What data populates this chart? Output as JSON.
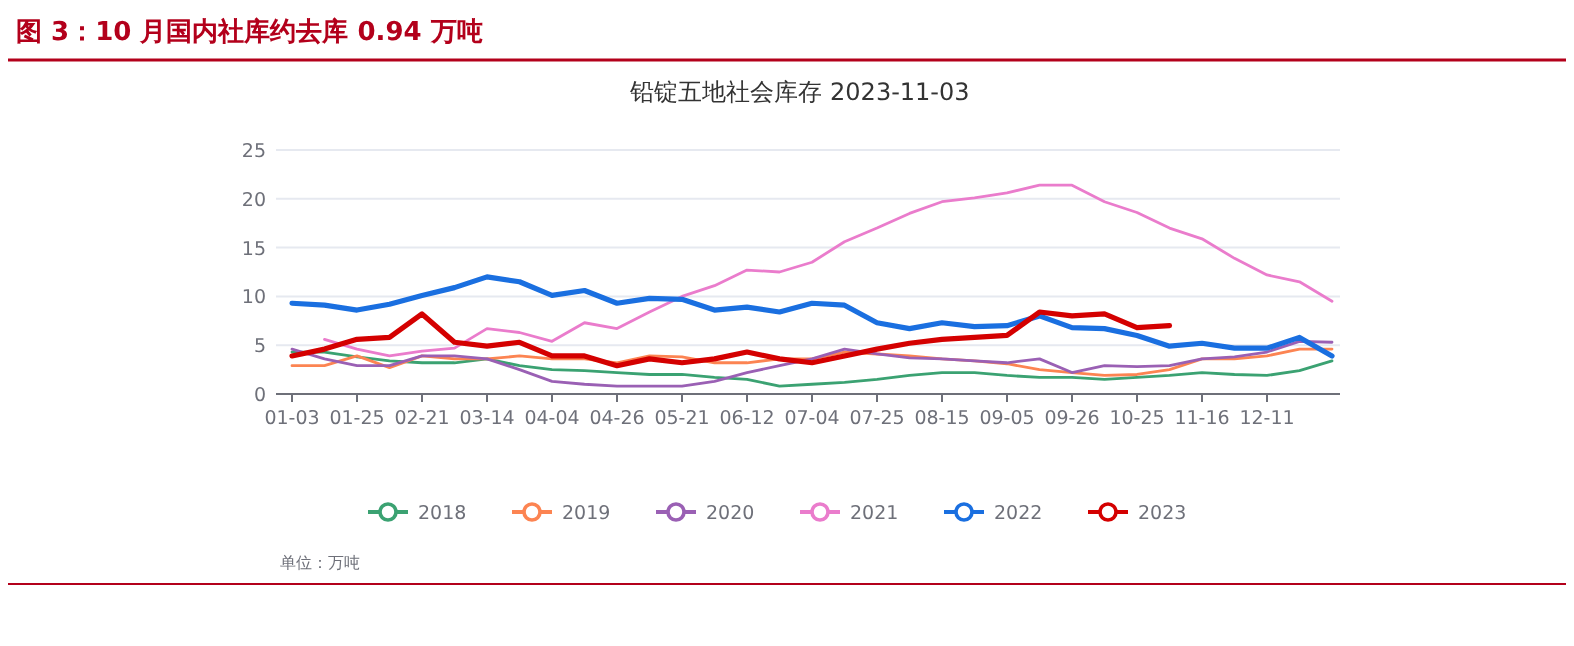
{
  "chart_data": {
    "type": "line",
    "title": "铅锭五地社会库存 2023-11-03",
    "annotations": [
      "图 3：10 月国内社库约去库 0.94 万吨",
      "单位：万吨"
    ],
    "categories": [
      "01-03",
      null,
      "01-25",
      null,
      "02-21",
      null,
      "03-14",
      null,
      "04-04",
      null,
      "04-26",
      null,
      "05-21",
      null,
      "06-12",
      null,
      "07-04",
      null,
      "07-25",
      null,
      "08-15",
      null,
      "09-05",
      null,
      "09-26",
      null,
      "10-25",
      null,
      "11-16",
      null,
      "12-11",
      null,
      null
    ],
    "ylim": [
      0,
      25
    ],
    "yticks": [
      0,
      5,
      10,
      15,
      20,
      25
    ],
    "grid": "y",
    "legend": "bottom",
    "series": [
      {
        "name": "2018",
        "color": "#3ba272",
        "values": [
          4.3,
          4.3,
          3.8,
          3.4,
          3.2,
          3.2,
          3.6,
          2.9,
          2.5,
          2.4,
          2.2,
          2.0,
          2.0,
          1.7,
          1.5,
          0.8,
          1.0,
          1.2,
          1.5,
          1.9,
          2.2,
          2.2,
          1.9,
          1.7,
          1.7,
          1.5,
          1.7,
          1.9,
          2.2,
          2.0,
          1.9,
          2.4,
          3.4
        ]
      },
      {
        "name": "2019",
        "color": "#fc8452",
        "values": [
          2.9,
          2.9,
          3.9,
          2.7,
          3.9,
          3.6,
          3.6,
          3.9,
          3.6,
          3.6,
          3.2,
          3.9,
          3.8,
          3.2,
          3.2,
          3.6,
          3.6,
          4.3,
          4.1,
          3.9,
          3.6,
          3.4,
          3.1,
          2.5,
          2.2,
          1.9,
          2.0,
          2.5,
          3.6,
          3.6,
          3.9,
          4.6,
          4.6
        ]
      },
      {
        "name": "2020",
        "color": "#9a60b4",
        "values": [
          4.6,
          3.6,
          2.9,
          2.9,
          3.9,
          3.9,
          3.6,
          2.5,
          1.3,
          1.0,
          0.8,
          0.8,
          0.8,
          1.3,
          2.2,
          2.9,
          3.6,
          4.6,
          4.1,
          3.7,
          3.6,
          3.4,
          3.2,
          3.6,
          2.2,
          2.9,
          2.8,
          2.9,
          3.6,
          3.8,
          4.3,
          5.4,
          5.3
        ]
      },
      {
        "name": "2021",
        "color": "#ea7ccc",
        "values": [
          null,
          5.6,
          4.6,
          3.9,
          4.4,
          4.7,
          6.7,
          6.3,
          5.4,
          7.3,
          6.7,
          8.4,
          10.0,
          11.1,
          12.7,
          12.5,
          13.5,
          15.6,
          17.0,
          18.5,
          19.7,
          20.1,
          20.6,
          21.4,
          21.4,
          19.7,
          18.6,
          17.0,
          15.9,
          13.9,
          12.2,
          11.5,
          9.5
        ]
      },
      {
        "name": "2022",
        "color": "#1a6fe0",
        "values": [
          9.3,
          9.1,
          8.6,
          9.2,
          10.1,
          10.9,
          12.0,
          11.5,
          10.1,
          10.6,
          9.3,
          9.8,
          9.7,
          8.6,
          8.9,
          8.4,
          9.3,
          9.1,
          7.3,
          6.7,
          7.3,
          6.9,
          7.0,
          8.0,
          6.8,
          6.7,
          6.0,
          4.9,
          5.2,
          4.7,
          4.7,
          5.8,
          3.9
        ]
      },
      {
        "name": "2023",
        "color": "#d40000",
        "values": [
          3.9,
          4.6,
          5.6,
          5.8,
          8.2,
          5.3,
          4.9,
          5.3,
          3.9,
          3.9,
          2.9,
          3.6,
          3.2,
          3.6,
          4.3,
          3.6,
          3.2,
          3.9,
          4.6,
          5.2,
          5.6,
          5.8,
          6.0,
          8.4,
          8.0,
          8.2,
          6.8,
          7.0,
          null,
          null,
          null,
          null,
          null
        ]
      }
    ]
  }
}
